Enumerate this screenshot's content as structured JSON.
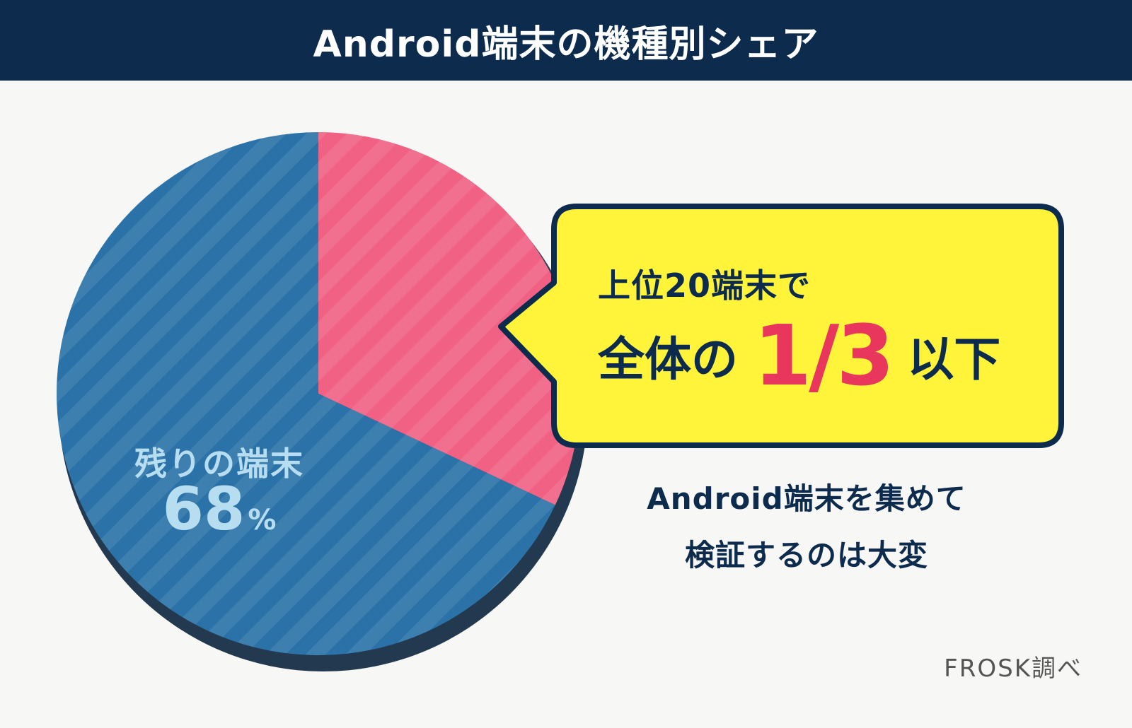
{
  "header": {
    "title": "Android端末の機種別シェア"
  },
  "chart_data": {
    "type": "pie",
    "slices": [
      {
        "name": "上位20端末",
        "value": 32,
        "color": "#f06184"
      },
      {
        "name": "残りの端末",
        "value": 68,
        "color": "#2a72a7"
      }
    ],
    "labels": {
      "remaining_name": "残りの端末",
      "remaining_value": "68",
      "remaining_unit": "%"
    }
  },
  "callout": {
    "line1": "上位20端末で",
    "line2_prefix": "全体の",
    "fraction": "1/3",
    "line2_suffix": "以下",
    "color_bg": "#fff43a",
    "color_border": "#0d2b4c",
    "color_accent": "#e8365d"
  },
  "note": {
    "line1": "Android端末を集めて",
    "line2": "検証するのは大変"
  },
  "source": "FROSK調べ"
}
